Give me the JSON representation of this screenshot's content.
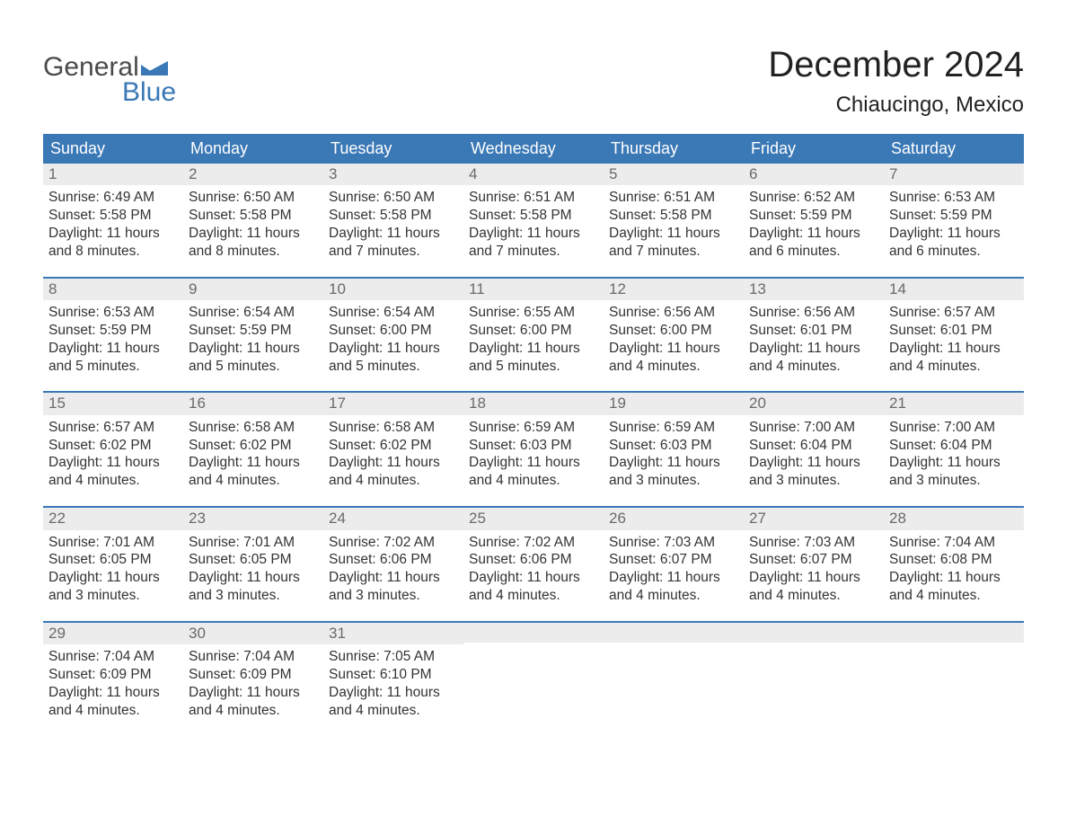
{
  "brand": {
    "word1": "General",
    "word2": "Blue",
    "icon_color": "#3a78b6",
    "word1_color": "#4a4a4a",
    "word2_color": "#3a78b6"
  },
  "title": "December 2024",
  "location": "Chiaucingo, Mexico",
  "colors": {
    "header_bg": "#3a78b6",
    "header_text": "#ffffff",
    "strip_bg": "#ececec",
    "strip_text": "#6a6a6a",
    "body_text": "#333333",
    "week_border": "#3a78b6",
    "page_bg": "#ffffff"
  },
  "fonts": {
    "title_size": 40,
    "location_size": 24,
    "dayheader_size": 18,
    "daynum_size": 17,
    "body_size": 15.5
  },
  "day_names": [
    "Sunday",
    "Monday",
    "Tuesday",
    "Wednesday",
    "Thursday",
    "Friday",
    "Saturday"
  ],
  "weeks": [
    [
      {
        "n": "1",
        "sunrise": "Sunrise: 6:49 AM",
        "sunset": "Sunset: 5:58 PM",
        "d1": "Daylight: 11 hours",
        "d2": "and 8 minutes."
      },
      {
        "n": "2",
        "sunrise": "Sunrise: 6:50 AM",
        "sunset": "Sunset: 5:58 PM",
        "d1": "Daylight: 11 hours",
        "d2": "and 8 minutes."
      },
      {
        "n": "3",
        "sunrise": "Sunrise: 6:50 AM",
        "sunset": "Sunset: 5:58 PM",
        "d1": "Daylight: 11 hours",
        "d2": "and 7 minutes."
      },
      {
        "n": "4",
        "sunrise": "Sunrise: 6:51 AM",
        "sunset": "Sunset: 5:58 PM",
        "d1": "Daylight: 11 hours",
        "d2": "and 7 minutes."
      },
      {
        "n": "5",
        "sunrise": "Sunrise: 6:51 AM",
        "sunset": "Sunset: 5:58 PM",
        "d1": "Daylight: 11 hours",
        "d2": "and 7 minutes."
      },
      {
        "n": "6",
        "sunrise": "Sunrise: 6:52 AM",
        "sunset": "Sunset: 5:59 PM",
        "d1": "Daylight: 11 hours",
        "d2": "and 6 minutes."
      },
      {
        "n": "7",
        "sunrise": "Sunrise: 6:53 AM",
        "sunset": "Sunset: 5:59 PM",
        "d1": "Daylight: 11 hours",
        "d2": "and 6 minutes."
      }
    ],
    [
      {
        "n": "8",
        "sunrise": "Sunrise: 6:53 AM",
        "sunset": "Sunset: 5:59 PM",
        "d1": "Daylight: 11 hours",
        "d2": "and 5 minutes."
      },
      {
        "n": "9",
        "sunrise": "Sunrise: 6:54 AM",
        "sunset": "Sunset: 5:59 PM",
        "d1": "Daylight: 11 hours",
        "d2": "and 5 minutes."
      },
      {
        "n": "10",
        "sunrise": "Sunrise: 6:54 AM",
        "sunset": "Sunset: 6:00 PM",
        "d1": "Daylight: 11 hours",
        "d2": "and 5 minutes."
      },
      {
        "n": "11",
        "sunrise": "Sunrise: 6:55 AM",
        "sunset": "Sunset: 6:00 PM",
        "d1": "Daylight: 11 hours",
        "d2": "and 5 minutes."
      },
      {
        "n": "12",
        "sunrise": "Sunrise: 6:56 AM",
        "sunset": "Sunset: 6:00 PM",
        "d1": "Daylight: 11 hours",
        "d2": "and 4 minutes."
      },
      {
        "n": "13",
        "sunrise": "Sunrise: 6:56 AM",
        "sunset": "Sunset: 6:01 PM",
        "d1": "Daylight: 11 hours",
        "d2": "and 4 minutes."
      },
      {
        "n": "14",
        "sunrise": "Sunrise: 6:57 AM",
        "sunset": "Sunset: 6:01 PM",
        "d1": "Daylight: 11 hours",
        "d2": "and 4 minutes."
      }
    ],
    [
      {
        "n": "15",
        "sunrise": "Sunrise: 6:57 AM",
        "sunset": "Sunset: 6:02 PM",
        "d1": "Daylight: 11 hours",
        "d2": "and 4 minutes."
      },
      {
        "n": "16",
        "sunrise": "Sunrise: 6:58 AM",
        "sunset": "Sunset: 6:02 PM",
        "d1": "Daylight: 11 hours",
        "d2": "and 4 minutes."
      },
      {
        "n": "17",
        "sunrise": "Sunrise: 6:58 AM",
        "sunset": "Sunset: 6:02 PM",
        "d1": "Daylight: 11 hours",
        "d2": "and 4 minutes."
      },
      {
        "n": "18",
        "sunrise": "Sunrise: 6:59 AM",
        "sunset": "Sunset: 6:03 PM",
        "d1": "Daylight: 11 hours",
        "d2": "and 4 minutes."
      },
      {
        "n": "19",
        "sunrise": "Sunrise: 6:59 AM",
        "sunset": "Sunset: 6:03 PM",
        "d1": "Daylight: 11 hours",
        "d2": "and 3 minutes."
      },
      {
        "n": "20",
        "sunrise": "Sunrise: 7:00 AM",
        "sunset": "Sunset: 6:04 PM",
        "d1": "Daylight: 11 hours",
        "d2": "and 3 minutes."
      },
      {
        "n": "21",
        "sunrise": "Sunrise: 7:00 AM",
        "sunset": "Sunset: 6:04 PM",
        "d1": "Daylight: 11 hours",
        "d2": "and 3 minutes."
      }
    ],
    [
      {
        "n": "22",
        "sunrise": "Sunrise: 7:01 AM",
        "sunset": "Sunset: 6:05 PM",
        "d1": "Daylight: 11 hours",
        "d2": "and 3 minutes."
      },
      {
        "n": "23",
        "sunrise": "Sunrise: 7:01 AM",
        "sunset": "Sunset: 6:05 PM",
        "d1": "Daylight: 11 hours",
        "d2": "and 3 minutes."
      },
      {
        "n": "24",
        "sunrise": "Sunrise: 7:02 AM",
        "sunset": "Sunset: 6:06 PM",
        "d1": "Daylight: 11 hours",
        "d2": "and 3 minutes."
      },
      {
        "n": "25",
        "sunrise": "Sunrise: 7:02 AM",
        "sunset": "Sunset: 6:06 PM",
        "d1": "Daylight: 11 hours",
        "d2": "and 4 minutes."
      },
      {
        "n": "26",
        "sunrise": "Sunrise: 7:03 AM",
        "sunset": "Sunset: 6:07 PM",
        "d1": "Daylight: 11 hours",
        "d2": "and 4 minutes."
      },
      {
        "n": "27",
        "sunrise": "Sunrise: 7:03 AM",
        "sunset": "Sunset: 6:07 PM",
        "d1": "Daylight: 11 hours",
        "d2": "and 4 minutes."
      },
      {
        "n": "28",
        "sunrise": "Sunrise: 7:04 AM",
        "sunset": "Sunset: 6:08 PM",
        "d1": "Daylight: 11 hours",
        "d2": "and 4 minutes."
      }
    ],
    [
      {
        "n": "29",
        "sunrise": "Sunrise: 7:04 AM",
        "sunset": "Sunset: 6:09 PM",
        "d1": "Daylight: 11 hours",
        "d2": "and 4 minutes."
      },
      {
        "n": "30",
        "sunrise": "Sunrise: 7:04 AM",
        "sunset": "Sunset: 6:09 PM",
        "d1": "Daylight: 11 hours",
        "d2": "and 4 minutes."
      },
      {
        "n": "31",
        "sunrise": "Sunrise: 7:05 AM",
        "sunset": "Sunset: 6:10 PM",
        "d1": "Daylight: 11 hours",
        "d2": "and 4 minutes."
      },
      {
        "empty": true
      },
      {
        "empty": true
      },
      {
        "empty": true
      },
      {
        "empty": true
      }
    ]
  ]
}
